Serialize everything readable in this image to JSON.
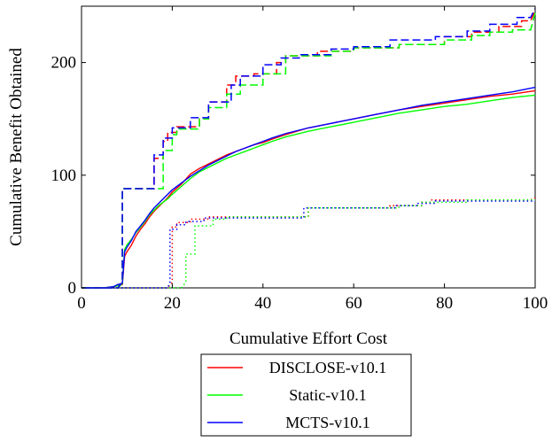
{
  "chart_data": {
    "type": "line",
    "title": "",
    "xlabel": "Cumulative Effort Cost",
    "ylabel": "Cumulative Benefit Obtained",
    "xlim": [
      0,
      100
    ],
    "ylim": [
      0,
      250
    ],
    "xticks": [
      0,
      20,
      40,
      60,
      80,
      100
    ],
    "yticks": [
      0,
      100,
      200
    ],
    "grid": false,
    "legend_position": "bottom-center",
    "legend": [
      {
        "name": "DISCLOSE-v10.1",
        "color": "#ff0000"
      },
      {
        "name": "Static-v10.1",
        "color": "#00ff00"
      },
      {
        "name": "MCTS-v10.1",
        "color": "#0000ff"
      }
    ],
    "series": [
      {
        "group": "DISCLOSE-v10.1",
        "color": "#ff0000",
        "style": "solid",
        "x": [
          0,
          5,
          7,
          8,
          9,
          9.5,
          10,
          11,
          12,
          13,
          14,
          15,
          16,
          17,
          18,
          19,
          20,
          22,
          24,
          26,
          28,
          30,
          32,
          34,
          36,
          38,
          40,
          42,
          45,
          50,
          55,
          60,
          65,
          70,
          75,
          80,
          85,
          90,
          95,
          100
        ],
        "y": [
          0,
          0,
          1,
          2,
          3,
          28,
          32,
          38,
          46,
          52,
          57,
          63,
          68,
          72,
          76,
          80,
          85,
          92,
          101,
          106,
          110,
          114,
          118,
          121,
          124,
          127,
          129,
          132,
          136,
          142,
          146,
          150,
          154,
          158,
          161,
          164,
          167,
          170,
          172,
          175
        ]
      },
      {
        "group": "Static-v10.1",
        "color": "#00ff00",
        "style": "solid",
        "x": [
          0,
          5,
          7,
          8,
          9,
          9.5,
          10,
          11,
          12,
          13,
          14,
          15,
          16,
          17,
          18,
          19,
          20,
          22,
          24,
          26,
          28,
          30,
          32,
          34,
          36,
          38,
          40,
          42,
          45,
          50,
          55,
          60,
          65,
          70,
          75,
          80,
          85,
          90,
          95,
          100
        ],
        "y": [
          0,
          0,
          1,
          2,
          4,
          34,
          38,
          43,
          49,
          54,
          59,
          65,
          69,
          73,
          76,
          79,
          83,
          90,
          97,
          103,
          107,
          111,
          115,
          118,
          121,
          124,
          127,
          130,
          134,
          139,
          143,
          147,
          151,
          155,
          158,
          161,
          163,
          166,
          169,
          171
        ]
      },
      {
        "group": "MCTS-v10.1",
        "color": "#0000ff",
        "style": "solid",
        "x": [
          0,
          5,
          7,
          8,
          9,
          9.5,
          10,
          11,
          12,
          13,
          14,
          15,
          16,
          17,
          18,
          19,
          20,
          22,
          24,
          26,
          28,
          30,
          32,
          34,
          36,
          38,
          40,
          42,
          45,
          50,
          55,
          60,
          65,
          70,
          75,
          80,
          85,
          90,
          95,
          100
        ],
        "y": [
          0,
          0,
          1,
          3,
          4,
          32,
          36,
          42,
          50,
          55,
          60,
          66,
          71,
          75,
          79,
          83,
          87,
          93,
          99,
          104,
          109,
          113,
          117,
          121,
          124,
          127,
          130,
          133,
          137,
          142,
          146,
          150,
          154,
          158,
          162,
          165,
          168,
          171,
          174,
          178
        ]
      },
      {
        "group": "DISCLOSE-v10.1",
        "color": "#ff0000",
        "style": "dashed",
        "x": [
          0,
          8,
          9,
          9,
          16,
          16,
          18,
          18,
          19,
          19,
          21,
          21,
          26,
          26,
          28,
          28,
          32,
          32,
          34,
          34,
          38,
          38,
          43,
          43,
          45,
          45,
          52,
          52,
          60,
          60,
          70,
          70,
          80,
          80,
          86,
          86,
          92,
          92,
          97,
          97,
          99,
          100
        ],
        "y": [
          0,
          0,
          5,
          88,
          88,
          115,
          115,
          130,
          130,
          138,
          138,
          143,
          143,
          150,
          150,
          165,
          165,
          180,
          180,
          188,
          188,
          190,
          190,
          200,
          200,
          206,
          206,
          210,
          210,
          213,
          213,
          216,
          216,
          223,
          223,
          227,
          227,
          232,
          232,
          237,
          237,
          246
        ]
      },
      {
        "group": "Static-v10.1",
        "color": "#00ff00",
        "style": "dashed",
        "x": [
          0,
          8,
          9,
          9,
          18,
          18,
          20,
          20,
          21,
          21,
          26,
          26,
          28,
          28,
          32,
          32,
          35,
          35,
          40,
          40,
          45,
          45,
          55,
          55,
          60,
          60,
          70,
          70,
          80,
          80,
          86,
          86,
          90,
          90,
          95,
          95,
          99,
          100
        ],
        "y": [
          0,
          0,
          4,
          88,
          88,
          122,
          122,
          136,
          136,
          141,
          141,
          150,
          150,
          160,
          160,
          172,
          172,
          180,
          180,
          190,
          190,
          206,
          206,
          210,
          210,
          213,
          213,
          216,
          216,
          220,
          220,
          224,
          224,
          227,
          227,
          229,
          229,
          244
        ]
      },
      {
        "group": "MCTS-v10.1",
        "color": "#0000ff",
        "style": "dashed",
        "x": [
          0,
          8,
          9,
          9,
          16,
          16,
          18,
          18,
          20,
          20,
          24,
          24,
          28,
          28,
          33,
          33,
          35,
          35,
          40,
          40,
          44,
          44,
          48,
          48,
          55,
          55,
          60,
          60,
          68,
          68,
          78,
          78,
          85,
          85,
          90,
          90,
          96,
          96,
          99,
          100
        ],
        "y": [
          0,
          0,
          5,
          88,
          88,
          118,
          118,
          133,
          133,
          142,
          142,
          151,
          151,
          165,
          165,
          180,
          180,
          188,
          188,
          198,
          198,
          204,
          204,
          207,
          207,
          212,
          212,
          214,
          214,
          220,
          220,
          223,
          223,
          228,
          228,
          234,
          234,
          240,
          240,
          248
        ]
      },
      {
        "group": "DISCLOSE-v10.1",
        "color": "#ff0000",
        "style": "dotted",
        "x": [
          0,
          19,
          20,
          20,
          21,
          21,
          24,
          24,
          28,
          28,
          50,
          50,
          68,
          68,
          75,
          75,
          77,
          77,
          99,
          100
        ],
        "y": [
          0,
          0,
          5,
          54,
          54,
          58,
          58,
          61,
          61,
          63,
          63,
          71,
          71,
          73,
          73,
          76,
          76,
          78,
          78,
          80
        ]
      },
      {
        "group": "Static-v10.1",
        "color": "#00ff00",
        "style": "dotted",
        "x": [
          0,
          22,
          23,
          23,
          25,
          25,
          29,
          29,
          32,
          32,
          50,
          50,
          70,
          70,
          75,
          75,
          85,
          85,
          100
        ],
        "y": [
          0,
          0,
          5,
          30,
          30,
          55,
          55,
          61,
          61,
          63,
          63,
          71,
          71,
          73,
          73,
          76,
          76,
          78,
          78
        ]
      },
      {
        "group": "MCTS-v10.1",
        "color": "#0000ff",
        "style": "dotted",
        "x": [
          0,
          19,
          19.5,
          19.5,
          21,
          21,
          23,
          23,
          27,
          27,
          49,
          49,
          69,
          69,
          74,
          74,
          78,
          78,
          100
        ],
        "y": [
          0,
          0,
          5,
          52,
          52,
          56,
          56,
          59,
          59,
          62,
          62,
          71,
          71,
          73,
          73,
          75,
          75,
          77,
          77
        ]
      }
    ]
  }
}
